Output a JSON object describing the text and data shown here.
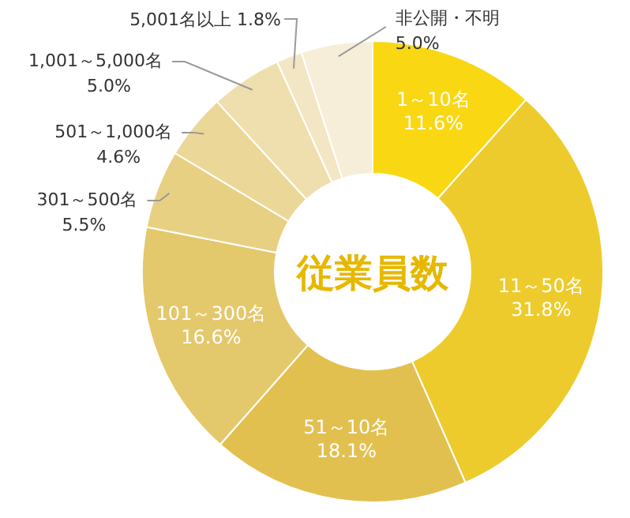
{
  "chart_data": {
    "type": "donut",
    "title": "従業員数",
    "categories": [
      "1～10名",
      "11～50名",
      "51～10名",
      "101～300名",
      "301～500名",
      "501～1,000名",
      "1,001～5,000名",
      "5,001名以上",
      "非公開・不明"
    ],
    "values": [
      11.6,
      31.8,
      18.1,
      16.6,
      5.5,
      4.6,
      5.0,
      1.8,
      5.0
    ],
    "colors": [
      "#fad713",
      "#eecb2c",
      "#e2c04f",
      "#e4c86c",
      "#e8d083",
      "#ebd798",
      "#efdfae",
      "#f2e6c4",
      "#f6eed9"
    ],
    "value_labels": [
      "11.6%",
      "31.8%",
      "18.1%",
      "16.6%",
      "5.5%",
      "4.6%",
      "5.0%",
      "1.8%",
      "5.0%"
    ]
  }
}
